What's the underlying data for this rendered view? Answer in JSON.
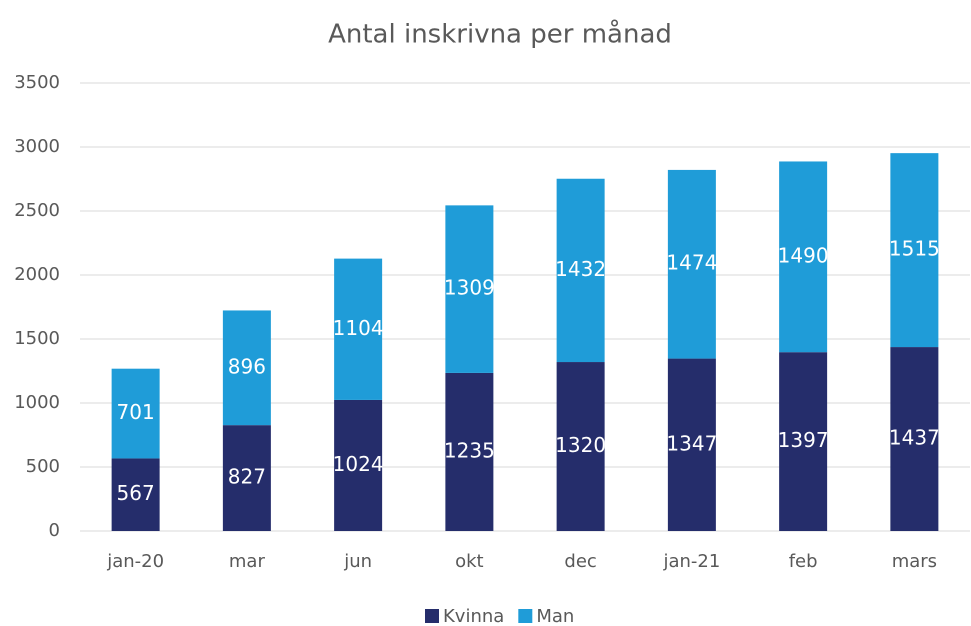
{
  "chart_data": {
    "type": "stacked_bar",
    "title": "Antal inskrivna per månad",
    "categories": [
      "jan-20",
      "mar",
      "jun",
      "okt",
      "dec",
      "jan-21",
      "feb",
      "mars"
    ],
    "series": [
      {
        "name": "Kvinna",
        "color": "#252d6b",
        "values": [
          567,
          827,
          1024,
          1235,
          1320,
          1347,
          1397,
          1437
        ]
      },
      {
        "name": "Man",
        "color": "#1f9cd8",
        "values": [
          701,
          896,
          1104,
          1309,
          1432,
          1474,
          1490,
          1515
        ]
      }
    ],
    "ylim": [
      0,
      3500
    ],
    "yticks": [
      0,
      500,
      1000,
      1500,
      2000,
      2500,
      3000,
      3500
    ],
    "grid": true,
    "legend": "bottom"
  }
}
